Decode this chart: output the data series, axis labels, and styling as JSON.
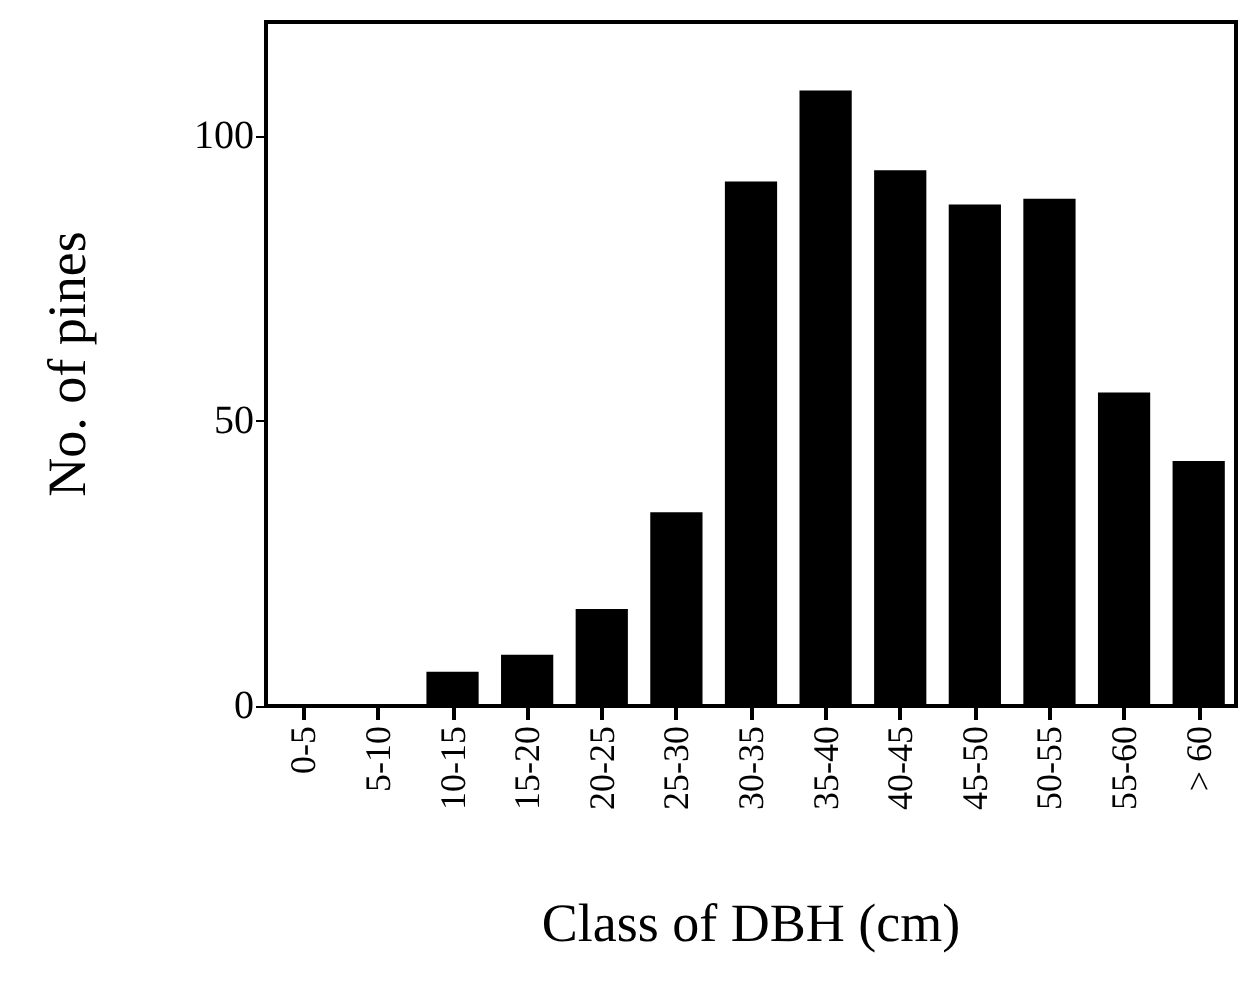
{
  "chart_data": {
    "type": "bar",
    "xlabel": "Class of DBH (cm)",
    "ylabel": "No. of pines",
    "categories": [
      "0-5",
      "5-10",
      "10-15",
      "15-20",
      "20-25",
      "25-30",
      "30-35",
      "35-40",
      "40-45",
      "45-50",
      "50-55",
      "55-60",
      "> 60"
    ],
    "values": [
      0,
      0,
      6,
      9,
      17,
      34,
      92,
      108,
      94,
      88,
      89,
      55,
      43
    ],
    "color": "#000000",
    "ylim": [
      0,
      120
    ],
    "yticks": [
      0,
      50,
      100
    ],
    "grid": false
  }
}
